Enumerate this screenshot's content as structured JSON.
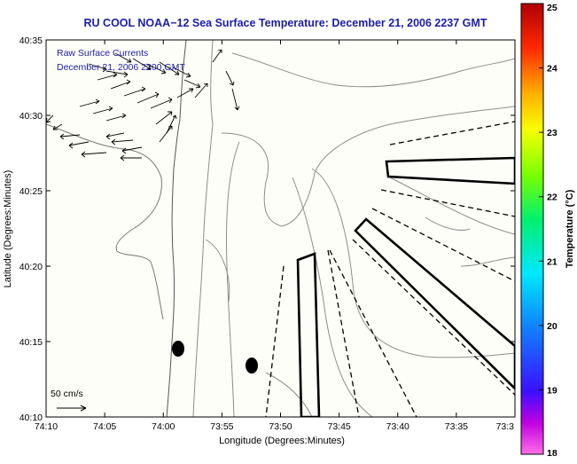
{
  "title": "RU COOL  NOAA−12  Sea Surface Temperature:  December 21, 2006 2237 GMT",
  "inset": {
    "line1": "Raw Surface Currents",
    "line2": "December 21, 2006 2200 GMT"
  },
  "axes": {
    "xlabel": "Longitude (Degrees:Minutes)",
    "ylabel": "Latitude (Degrees:Minutes)",
    "x_ticks": [
      "74:10",
      "74:05",
      "74:00",
      "73:55",
      "73:50",
      "73:45",
      "73:40",
      "73:35",
      "73:3"
    ],
    "y_ticks": [
      "40:35",
      "40:30",
      "40:25",
      "40:20",
      "40:15",
      "40:10"
    ]
  },
  "scale_arrow": {
    "label": "50 cm/s"
  },
  "colorbar": {
    "label": "Temperature (°C)",
    "ticks": [
      "25",
      "24",
      "23",
      "22",
      "21",
      "20",
      "19",
      "18"
    ],
    "min": 18,
    "max": 25
  },
  "colors": {
    "title": "#1c1ca8",
    "inset_text": "#1c1ca8",
    "land": "#fefef8",
    "contour": "#8c8c8c",
    "vector": "#000000"
  }
}
